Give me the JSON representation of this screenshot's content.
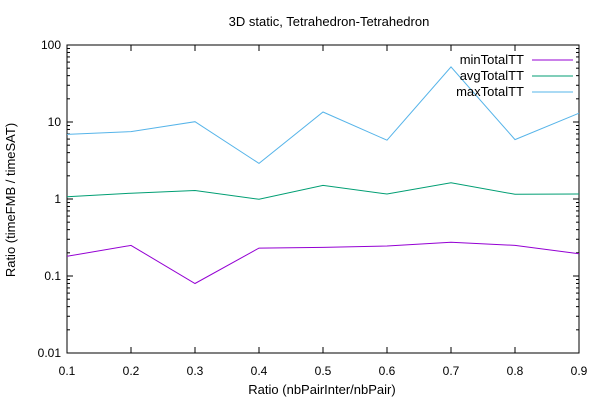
{
  "chart_data": {
    "type": "line",
    "title": "3D static, Tetrahedron-Tetrahedron",
    "xlabel": "Ratio (nbPairInter/nbPair)",
    "ylabel": "Ratio (timeFMB / timeSAT)",
    "x": [
      0.1,
      0.2,
      0.3,
      0.4,
      0.5,
      0.6,
      0.7,
      0.8,
      0.9
    ],
    "xlim": [
      0.1,
      0.9
    ],
    "ylim": [
      0.01,
      100
    ],
    "yscale": "log",
    "x_ticks": [
      "0.1",
      "0.2",
      "0.3",
      "0.4",
      "0.5",
      "0.6",
      "0.7",
      "0.8",
      "0.9"
    ],
    "y_ticks": [
      {
        "value": 0.01,
        "label": "0.01"
      },
      {
        "value": 0.1,
        "label": "0.1"
      },
      {
        "value": 1,
        "label": "1"
      },
      {
        "value": 10,
        "label": "10"
      },
      {
        "value": 100,
        "label": "100"
      }
    ],
    "grid": false,
    "legend_position": "top-right",
    "series": [
      {
        "name": "minTotalTT",
        "color": "#9400d3",
        "values": [
          0.18,
          0.25,
          0.08,
          0.23,
          0.235,
          0.245,
          0.275,
          0.25,
          0.195
        ]
      },
      {
        "name": "avgTotalTT",
        "color": "#009e73",
        "values": [
          1.07,
          1.19,
          1.29,
          0.99,
          1.5,
          1.16,
          1.63,
          1.15,
          1.16
        ]
      },
      {
        "name": "maxTotalTT",
        "color": "#56b4e9",
        "values": [
          6.9,
          7.5,
          10.1,
          2.9,
          13.5,
          5.8,
          52,
          5.9,
          13
        ]
      }
    ]
  }
}
